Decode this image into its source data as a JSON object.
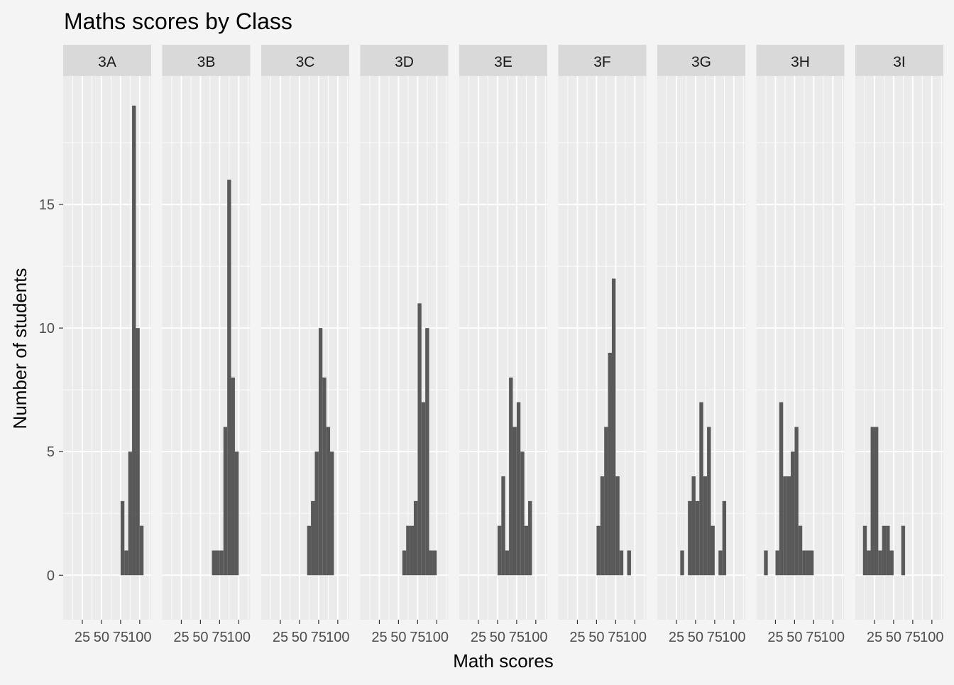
{
  "chart_data": {
    "type": "bar",
    "subtype": "faceted-histogram",
    "title": "Maths scores by Class",
    "xlabel": "Math scores",
    "ylabel": "Number of students",
    "ylim": [
      -1.8,
      20.2
    ],
    "y_ticks": [
      0,
      5,
      10,
      15
    ],
    "x_ticks": [
      25,
      50,
      75,
      100
    ],
    "bin_width": 5,
    "colors": {
      "bar": "#595959",
      "panel_background": "#ebebeb",
      "strip_background": "#d9d9d9",
      "grid": "#ffffff",
      "page_background": "#f4f4f4"
    },
    "grid": true,
    "facets": [
      {
        "label": "3A",
        "bins": [
          [
            75,
            80,
            3
          ],
          [
            80,
            85,
            1
          ],
          [
            85,
            90,
            5
          ],
          [
            90,
            95,
            19
          ],
          [
            95,
            100,
            10
          ],
          [
            100,
            105,
            2
          ]
        ]
      },
      {
        "label": "3B",
        "bins": [
          [
            65,
            70,
            1
          ],
          [
            70,
            75,
            1
          ],
          [
            75,
            80,
            1
          ],
          [
            80,
            85,
            6
          ],
          [
            85,
            90,
            16
          ],
          [
            90,
            95,
            8
          ],
          [
            95,
            100,
            5
          ]
        ]
      },
      {
        "label": "3C",
        "bins": [
          [
            60,
            65,
            2
          ],
          [
            65,
            70,
            3
          ],
          [
            70,
            75,
            5
          ],
          [
            75,
            80,
            10
          ],
          [
            80,
            85,
            8
          ],
          [
            85,
            90,
            6
          ],
          [
            90,
            95,
            5
          ]
        ]
      },
      {
        "label": "3D",
        "bins": [
          [
            55,
            60,
            1
          ],
          [
            60,
            65,
            2
          ],
          [
            65,
            70,
            2
          ],
          [
            70,
            75,
            3
          ],
          [
            75,
            80,
            11
          ],
          [
            80,
            85,
            7
          ],
          [
            85,
            90,
            10
          ],
          [
            90,
            95,
            1
          ],
          [
            95,
            100,
            1
          ]
        ]
      },
      {
        "label": "3E",
        "bins": [
          [
            50,
            55,
            2
          ],
          [
            55,
            60,
            4
          ],
          [
            60,
            65,
            1
          ],
          [
            65,
            70,
            8
          ],
          [
            70,
            75,
            6
          ],
          [
            75,
            80,
            7
          ],
          [
            80,
            85,
            5
          ],
          [
            85,
            90,
            2
          ],
          [
            90,
            95,
            3
          ]
        ]
      },
      {
        "label": "3F",
        "bins": [
          [
            50,
            55,
            2
          ],
          [
            55,
            60,
            4
          ],
          [
            60,
            65,
            6
          ],
          [
            65,
            70,
            9
          ],
          [
            70,
            75,
            12
          ],
          [
            75,
            80,
            4
          ],
          [
            80,
            85,
            1
          ],
          [
            90,
            95,
            1
          ]
        ]
      },
      {
        "label": "3G",
        "bins": [
          [
            30,
            35,
            1
          ],
          [
            40,
            45,
            3
          ],
          [
            45,
            50,
            4
          ],
          [
            50,
            55,
            3
          ],
          [
            55,
            60,
            7
          ],
          [
            60,
            65,
            4
          ],
          [
            65,
            70,
            6
          ],
          [
            70,
            75,
            2
          ],
          [
            80,
            85,
            1
          ],
          [
            85,
            90,
            3
          ]
        ]
      },
      {
        "label": "3H",
        "bins": [
          [
            10,
            15,
            1
          ],
          [
            25,
            30,
            1
          ],
          [
            30,
            35,
            7
          ],
          [
            35,
            40,
            4
          ],
          [
            40,
            45,
            4
          ],
          [
            45,
            50,
            5
          ],
          [
            50,
            55,
            6
          ],
          [
            55,
            60,
            2
          ],
          [
            60,
            65,
            1
          ],
          [
            65,
            70,
            1
          ],
          [
            70,
            75,
            1
          ]
        ]
      },
      {
        "label": "3I",
        "bins": [
          [
            10,
            15,
            2
          ],
          [
            15,
            20,
            1
          ],
          [
            20,
            25,
            6
          ],
          [
            25,
            30,
            6
          ],
          [
            30,
            35,
            1
          ],
          [
            35,
            40,
            2
          ],
          [
            40,
            45,
            2
          ],
          [
            45,
            50,
            1
          ],
          [
            60,
            65,
            2
          ]
        ]
      }
    ]
  }
}
